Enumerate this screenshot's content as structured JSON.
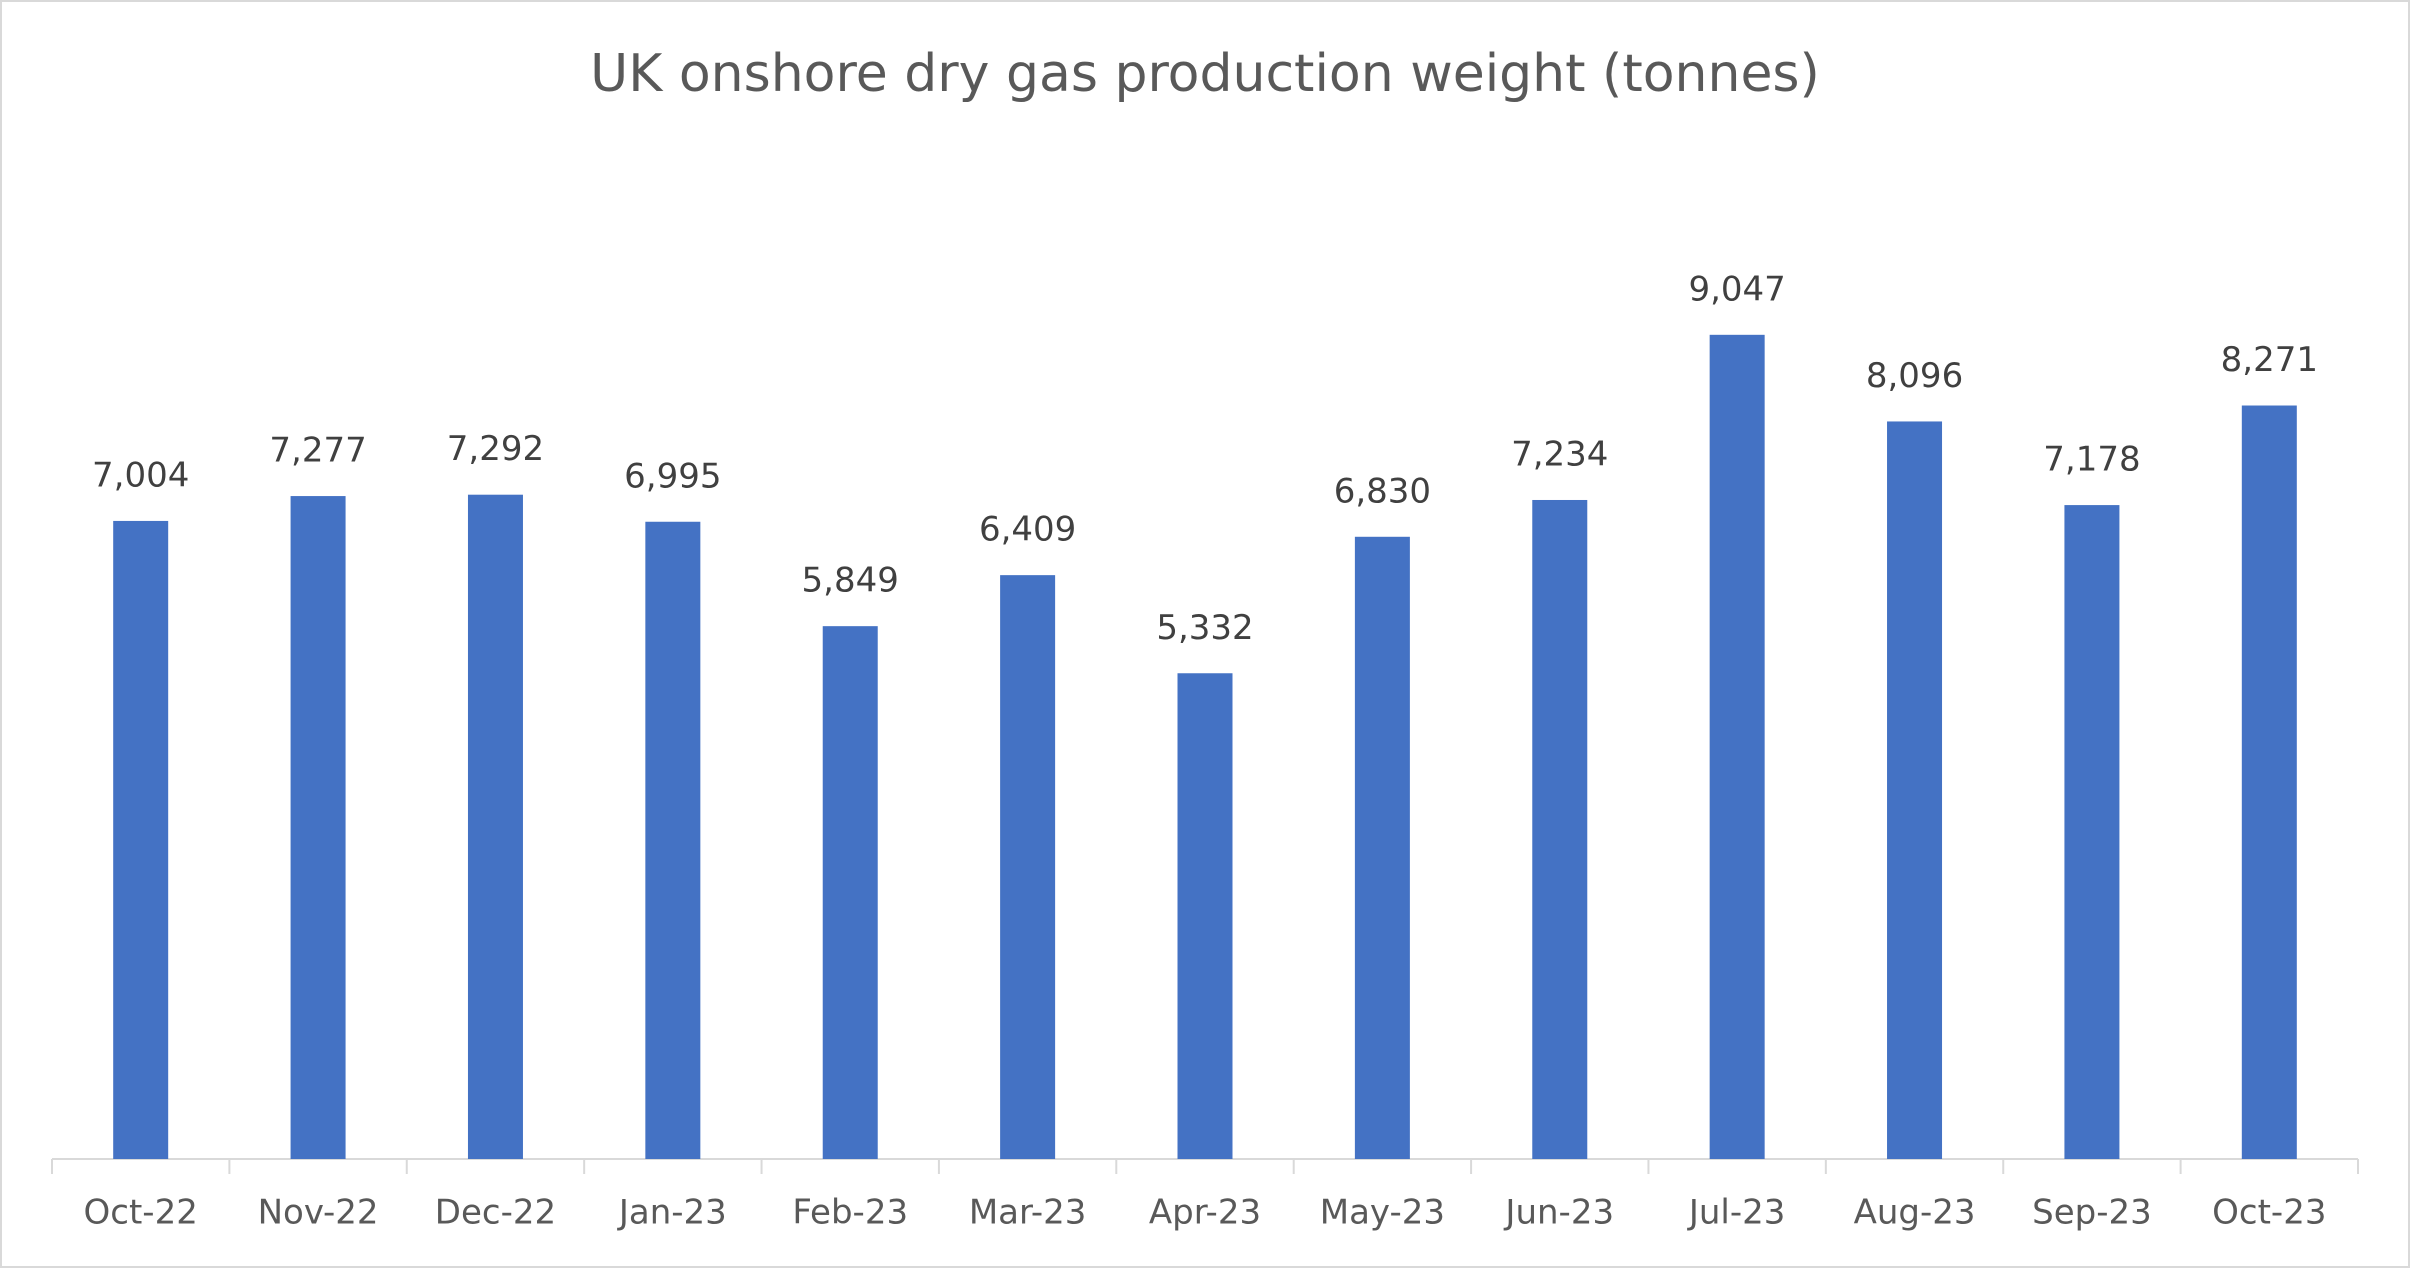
{
  "chart_data": {
    "type": "bar",
    "title": "UK onshore dry gas production weight (tonnes)",
    "categories": [
      "Oct-22",
      "Nov-22",
      "Dec-22",
      "Jan-23",
      "Feb-23",
      "Mar-23",
      "Apr-23",
      "May-23",
      "Jun-23",
      "Jul-23",
      "Aug-23",
      "Sep-23",
      "Oct-23"
    ],
    "values": [
      7004,
      7277,
      7292,
      6995,
      5849,
      6409,
      5332,
      6830,
      7234,
      9047,
      8096,
      7178,
      8271
    ],
    "value_labels": [
      "7,004",
      "7,277",
      "7,292",
      "6,995",
      "5,849",
      "6,409",
      "5,332",
      "6,830",
      "7,234",
      "9,047",
      "8,096",
      "7,178",
      "8,271"
    ],
    "color": "#4472c4",
    "ylim": [
      0,
      10000
    ]
  }
}
